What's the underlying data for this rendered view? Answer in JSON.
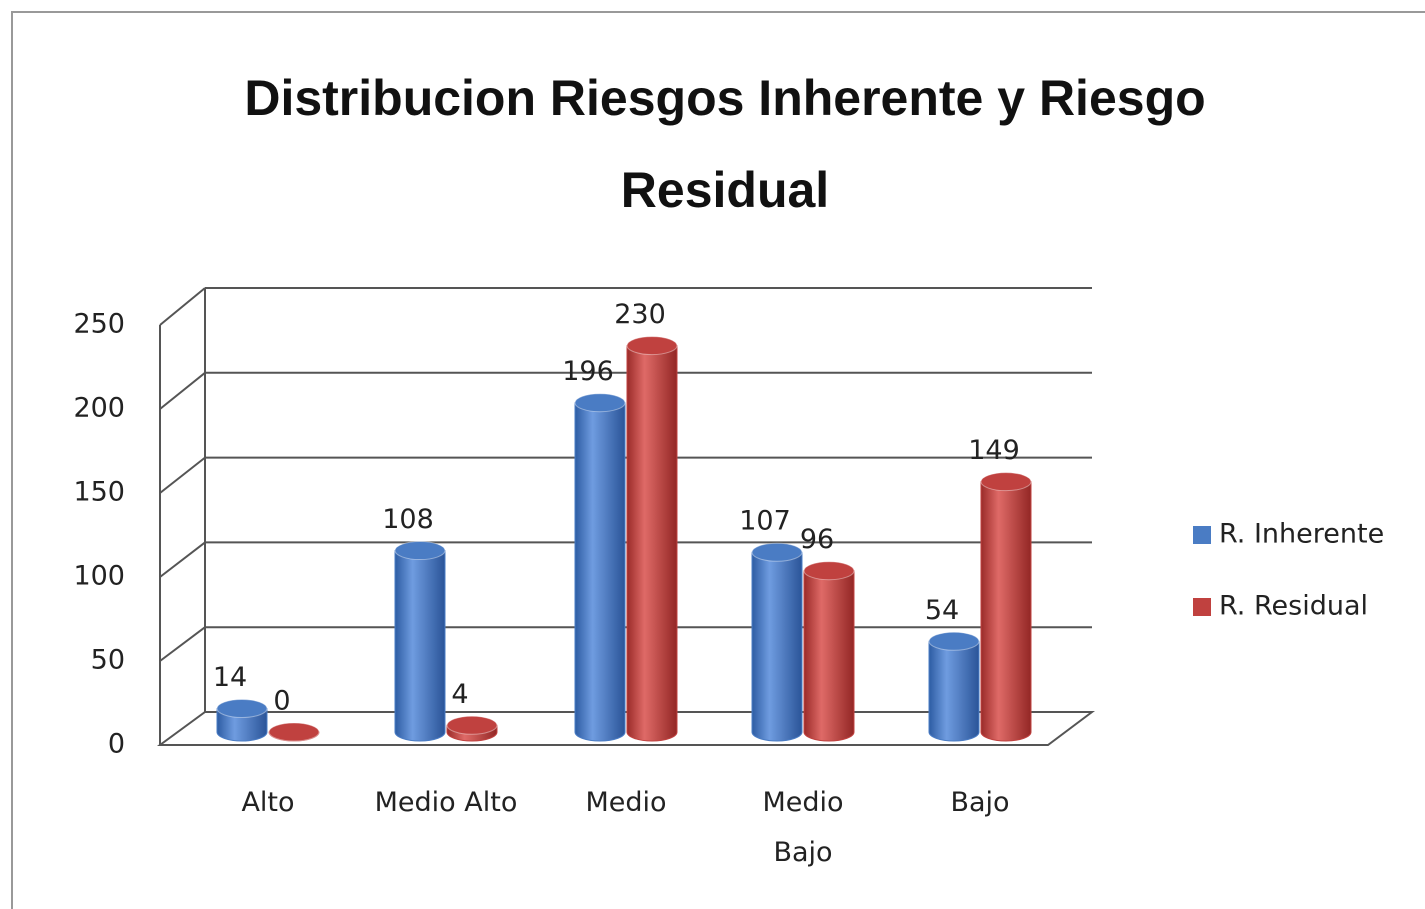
{
  "chart_data": {
    "type": "bar",
    "title": "Distribucion Riesgos Inherente y Riesgo Residual",
    "categories": [
      "Alto",
      "Medio Alto",
      "Medio",
      "Medio Bajo",
      "Bajo"
    ],
    "series": [
      {
        "name": "R. Inherente",
        "color": "#4a7cc4",
        "values": [
          14,
          108,
          196,
          107,
          54
        ]
      },
      {
        "name": "R. Residual",
        "color": "#c0413f",
        "values": [
          0,
          4,
          230,
          96,
          149
        ]
      }
    ],
    "ylim": [
      0,
      250
    ],
    "yticks": [
      0,
      50,
      100,
      150,
      200,
      250
    ],
    "grid": true,
    "legend": "right"
  }
}
